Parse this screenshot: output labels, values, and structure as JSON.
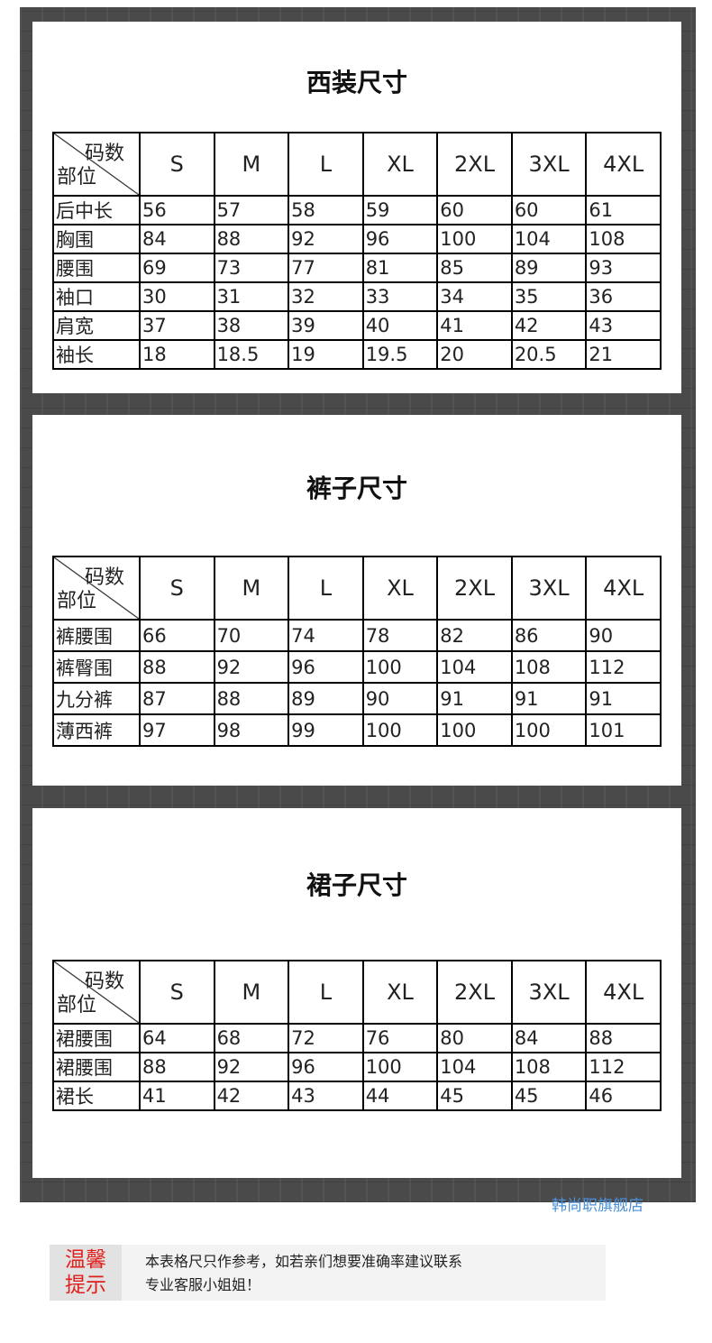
{
  "corner": {
    "top": "码数",
    "bottom": "部位"
  },
  "sizes": [
    "S",
    "M",
    "L",
    "XL",
    "2XL",
    "3XL",
    "4XL"
  ],
  "sections": [
    {
      "title": "西装尺寸",
      "rows": [
        {
          "label": "后中长",
          "values": [
            "56",
            "57",
            "58",
            "59",
            "60",
            "60",
            "61"
          ]
        },
        {
          "label": "胸围",
          "values": [
            "84",
            "88",
            "92",
            "96",
            "100",
            "104",
            "108"
          ]
        },
        {
          "label": "腰围",
          "values": [
            "69",
            "73",
            "77",
            "81",
            "85",
            "89",
            "93"
          ]
        },
        {
          "label": "袖口",
          "values": [
            "30",
            "31",
            "32",
            "33",
            "34",
            "35",
            "36"
          ]
        },
        {
          "label": "肩宽",
          "values": [
            "37",
            "38",
            "39",
            "40",
            "41",
            "42",
            "43"
          ]
        },
        {
          "label": "袖长",
          "values": [
            "18",
            "18.5",
            "19",
            "19.5",
            "20",
            "20.5",
            "21"
          ]
        }
      ]
    },
    {
      "title": "裤子尺寸",
      "rows": [
        {
          "label": "裤腰围",
          "values": [
            "66",
            "70",
            "74",
            "78",
            "82",
            "86",
            "90"
          ]
        },
        {
          "label": "裤臀围",
          "values": [
            "88",
            "92",
            "96",
            "100",
            "104",
            "108",
            "112"
          ]
        },
        {
          "label": "九分裤",
          "values": [
            "87",
            "88",
            "89",
            "90",
            "91",
            "91",
            "91"
          ]
        },
        {
          "label": "薄西裤",
          "values": [
            "97",
            "98",
            "99",
            "100",
            "100",
            "100",
            "101"
          ]
        }
      ]
    },
    {
      "title": "裙子尺寸",
      "rows": [
        {
          "label": "裙腰围",
          "values": [
            "64",
            "68",
            "72",
            "76",
            "80",
            "84",
            "88"
          ]
        },
        {
          "label": "裙腰围",
          "values": [
            "88",
            "92",
            "96",
            "100",
            "104",
            "108",
            "112"
          ]
        },
        {
          "label": "裙长",
          "values": [
            "41",
            "42",
            "43",
            "44",
            "45",
            "45",
            "46"
          ]
        }
      ]
    }
  ],
  "watermark": "韩尚职旗舰店",
  "notice": {
    "label_line1": "温馨",
    "label_line2": "提示",
    "line1": "本表格尺只作参考，如若亲们想要准确率建议联系",
    "line2": "专业客服小姐姐！"
  },
  "colors": {
    "frame": "#4a4a4a",
    "watermark": "#4a90d9",
    "notice_label": "#e0201c"
  }
}
